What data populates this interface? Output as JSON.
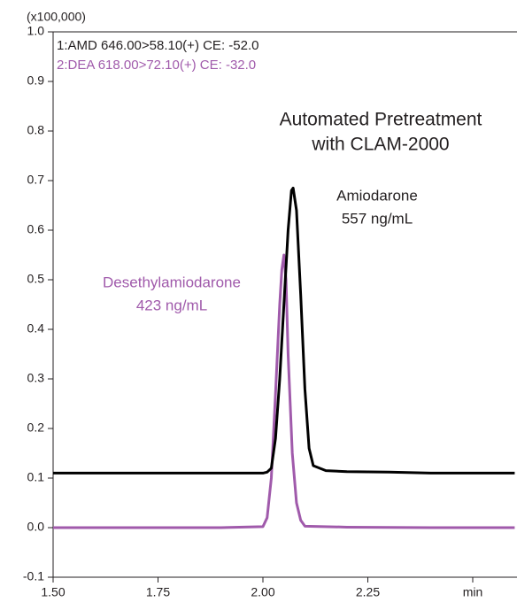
{
  "chart_data": {
    "type": "line",
    "title": [
      "Automated Pretreatment",
      "with CLAM-2000"
    ],
    "y_unit_label": "(x100,000)",
    "channels": [
      {
        "text": "1:AMD 646.00>58.10(+) CE: -52.0",
        "color": "#231f20"
      },
      {
        "text": "2:DEA 618.00>72.10(+) CE: -32.0",
        "color": "#a05aab"
      }
    ],
    "annotations": [
      {
        "lines": [
          "Amiodarone",
          "557 ng/mL"
        ],
        "color": "#231f20"
      },
      {
        "lines": [
          "Desethylamiodarone",
          "423 ng/mL"
        ],
        "color": "#a05aab"
      }
    ],
    "xlim": [
      1.5,
      2.6
    ],
    "ylim": [
      -0.1,
      1.0
    ],
    "xticks": [
      {
        "value": 1.5,
        "label": "1.50"
      },
      1.75,
      {
        "value": 2.0,
        "label": "2.00"
      },
      2.25,
      {
        "value": 2.5,
        "label": "min"
      }
    ],
    "yticks": [
      -0.1,
      {
        "value": 0,
        "label": "0.0"
      },
      0.1,
      0.2,
      0.3,
      0.4,
      0.5,
      0.6,
      0.7,
      0.8,
      0.9,
      {
        "value": 1,
        "label": "1.0"
      }
    ],
    "series": [
      {
        "name": "AMD",
        "color": "#000000",
        "x": [
          1.5,
          1.9,
          2.0,
          2.01,
          2.02,
          2.03,
          2.04,
          2.05,
          2.06,
          2.068,
          2.072,
          2.08,
          2.09,
          2.1,
          2.11,
          2.12,
          2.15,
          2.2,
          2.3,
          2.4,
          2.5,
          2.6
        ],
        "values": [
          0.11,
          0.11,
          0.11,
          0.112,
          0.12,
          0.18,
          0.3,
          0.45,
          0.6,
          0.68,
          0.685,
          0.64,
          0.47,
          0.28,
          0.16,
          0.125,
          0.115,
          0.113,
          0.112,
          0.11,
          0.11,
          0.11
        ]
      },
      {
        "name": "DEA",
        "color": "#a05aab",
        "x": [
          1.5,
          1.9,
          2.0,
          2.01,
          2.02,
          2.03,
          2.04,
          2.045,
          2.05,
          2.055,
          2.06,
          2.07,
          2.08,
          2.09,
          2.1,
          2.2,
          2.4,
          2.6
        ],
        "values": [
          0,
          0,
          0.002,
          0.02,
          0.1,
          0.27,
          0.45,
          0.52,
          0.55,
          0.5,
          0.35,
          0.15,
          0.05,
          0.015,
          0.003,
          0.001,
          0,
          0
        ]
      }
    ]
  }
}
